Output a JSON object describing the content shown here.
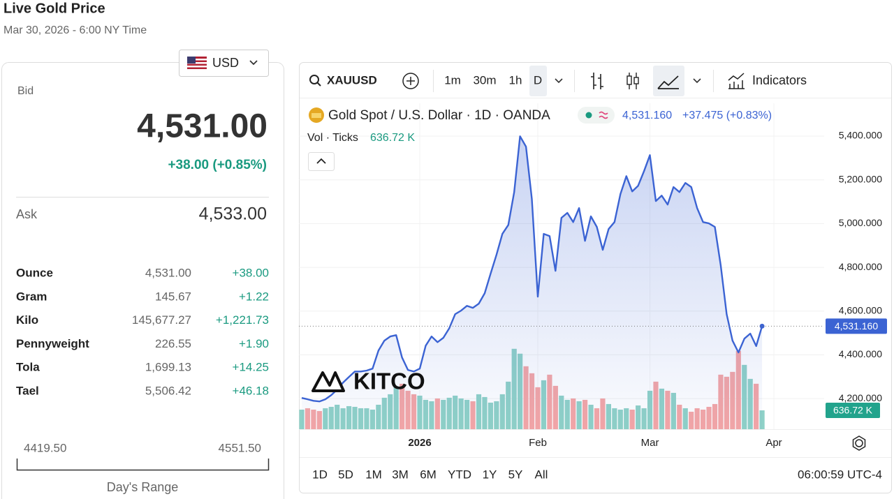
{
  "header": {
    "title": "Live Gold Price",
    "timestamp": "Mar 30, 2026 - 6:00 NY Time"
  },
  "quote": {
    "currency": "USD",
    "bid_label": "Bid",
    "bid": "4,531.00",
    "change": "+38.00 (+0.85%)",
    "ask_label": "Ask",
    "ask": "4,533.00",
    "units": [
      {
        "name": "Ounce",
        "price": "4,531.00",
        "change": "+38.00"
      },
      {
        "name": "Gram",
        "price": "145.67",
        "change": "+1.22"
      },
      {
        "name": "Kilo",
        "price": "145,677.27",
        "change": "+1,221.73"
      },
      {
        "name": "Pennyweight",
        "price": "226.55",
        "change": "+1.90"
      },
      {
        "name": "Tola",
        "price": "1,699.13",
        "change": "+14.25"
      },
      {
        "name": "Tael",
        "price": "5,506.42",
        "change": "+46.18"
      }
    ],
    "range": {
      "low": "4419.50",
      "high": "4551.50",
      "label": "Day's Range"
    }
  },
  "toolbar": {
    "symbol": "XAUUSD",
    "intervals": [
      "1m",
      "30m",
      "1h",
      "D"
    ],
    "indicators": "Indicators",
    "ranges": [
      "1D",
      "5D",
      "1M",
      "3M",
      "6M",
      "YTD",
      "1Y",
      "5Y",
      "All"
    ],
    "clock": "06:00:59 UTC-4"
  },
  "legend": {
    "title": "Gold Spot / U.S. Dollar · 1D · OANDA",
    "price": "4,531.160",
    "change": "+37.475 (+0.83%)",
    "volume_label": "Vol · Ticks",
    "volume": "636.72 K"
  },
  "watermark": "KITCO",
  "chart_data": {
    "type": "line",
    "categories": [
      null,
      null,
      null,
      null,
      null,
      null,
      null,
      null,
      null,
      null,
      null,
      null,
      null,
      null,
      null,
      null,
      null,
      null,
      null,
      null,
      "2026",
      null,
      null,
      null,
      null,
      null,
      null,
      null,
      null,
      null,
      null,
      null,
      null,
      null,
      null,
      null,
      null,
      null,
      null,
      null,
      "Feb",
      null,
      null,
      null,
      null,
      null,
      null,
      null,
      null,
      null,
      null,
      null,
      null,
      null,
      null,
      null,
      null,
      null,
      null,
      "Mar",
      null,
      null,
      null,
      null,
      null,
      null,
      null,
      null,
      null,
      null,
      null,
      null,
      null,
      null,
      null,
      null,
      null,
      null,
      null,
      null,
      "Apr"
    ],
    "series": [
      {
        "color": "#3b63d3",
        "values": [
          4203,
          4197,
          4190,
          4187,
          4197,
          4216,
          4241,
          4273,
          4299,
          4324,
          4324,
          4328,
          4337,
          4420,
          4465,
          4484,
          4490,
          4388,
          4331,
          4324,
          4337,
          4442,
          4484,
          4458,
          4478,
          4522,
          4586,
          4602,
          4624,
          4615,
          4634,
          4682,
          4771,
          4857,
          4953,
          4994,
          5144,
          5399,
          5352,
          5112,
          4666,
          4953,
          4943,
          4784,
          5026,
          5049,
          5007,
          5071,
          4921,
          5033,
          4985,
          4880,
          4975,
          5007,
          5135,
          5217,
          5147,
          5173,
          5240,
          5313,
          5103,
          5128,
          5087,
          5167,
          5144,
          5186,
          5167,
          5071,
          5007,
          5001,
          4985,
          4809,
          4586,
          4465,
          4411,
          4474,
          4497,
          4440,
          4531.16,
          null,
          null
        ]
      }
    ],
    "volume": {
      "values": [
        661,
        708,
        661,
        614,
        708,
        755,
        826,
        708,
        779,
        755,
        708,
        708,
        661,
        826,
        1062,
        1180,
        1416,
        1534,
        1298,
        1180,
        1133,
        991,
        944,
        1038,
        991,
        1062,
        1133,
        1038,
        991,
        944,
        1180,
        1086,
        897,
        944,
        1180,
        1605,
        2714,
        2549,
        2124,
        1888,
        1416,
        1652,
        1841,
        1463,
        1133,
        991,
        1038,
        944,
        991,
        826,
        708,
        1038,
        850,
        708,
        661,
        708,
        661,
        802,
        708,
        1298,
        1605,
        1369,
        1298,
        1227,
        826,
        708,
        590,
        708,
        661,
        755,
        850,
        1841,
        1770,
        1935,
        2643,
        2171,
        1699,
        1534,
        636.72,
        null,
        null
      ],
      "ylim": [
        0,
        11000
      ],
      "colors": {
        "up": "#8fd1c7",
        "down": "#f4a6a6"
      }
    },
    "ylim": [
      4060,
      5550
    ],
    "yticks": [
      {
        "value": 4200,
        "label": "4,200.000"
      },
      {
        "value": 4400,
        "label": "4,400.000"
      },
      {
        "value": 4600,
        "label": "4,600.000"
      },
      {
        "value": 4800,
        "label": "4,800.000"
      },
      {
        "value": 5000,
        "label": "5,000.000"
      },
      {
        "value": 5200,
        "label": "5,200.000"
      },
      {
        "value": 5400,
        "label": "5,400.000"
      }
    ],
    "last_price": {
      "value": 4531.16,
      "label": "4,531.160"
    },
    "last_volume": {
      "value": 636.72,
      "label": "636.72 K"
    },
    "grid": true
  }
}
